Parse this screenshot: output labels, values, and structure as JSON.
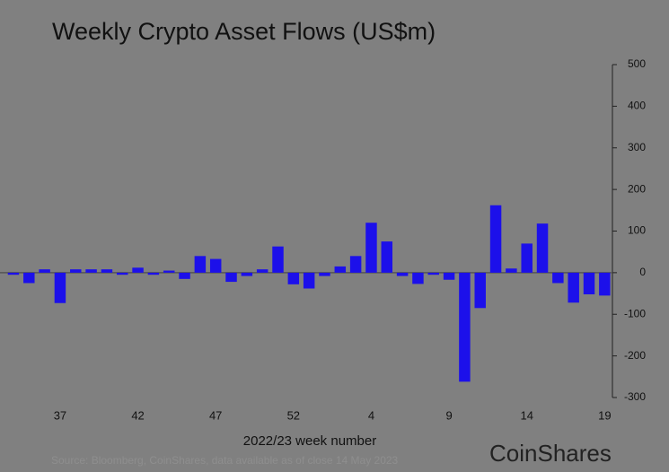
{
  "chart_data": {
    "type": "bar",
    "title": "Weekly Crypto Asset Flows (US$m)",
    "x_label": "2022/23 week number",
    "source": "Source: Bloomberg, CoinShares, data available as of close 14 May 2023",
    "brand": "CoinShares",
    "color": "#1c10ea",
    "categories": [
      null,
      null,
      null,
      "37",
      null,
      null,
      null,
      null,
      "42",
      null,
      null,
      null,
      null,
      "47",
      null,
      null,
      null,
      null,
      "52",
      null,
      null,
      null,
      null,
      "4",
      null,
      null,
      null,
      null,
      "9",
      null,
      null,
      null,
      null,
      "14",
      null,
      null,
      null,
      null,
      "19"
    ],
    "values": [
      -5,
      -25,
      8,
      -73,
      8,
      8,
      8,
      -5,
      12,
      -5,
      5,
      -15,
      40,
      33,
      -22,
      -8,
      8,
      63,
      -28,
      -38,
      -8,
      15,
      40,
      120,
      75,
      -8,
      -27,
      -5,
      -17,
      -262,
      -85,
      162,
      10,
      70,
      118,
      -25,
      -72,
      -52,
      -55
    ],
    "ylim": [
      -300,
      500
    ],
    "yticks": [
      -300,
      -200,
      -100,
      0,
      100,
      200,
      300,
      400,
      500
    ],
    "y_axis_side": "right"
  }
}
